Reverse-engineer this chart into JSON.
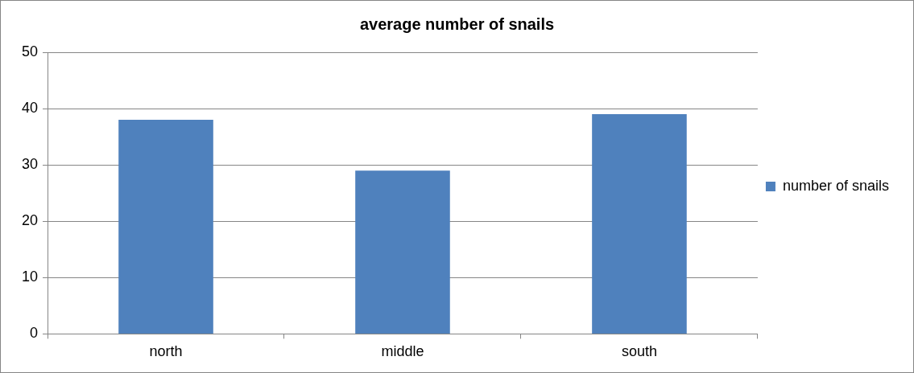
{
  "chart_data": {
    "type": "bar",
    "title": "average number of snails",
    "categories": [
      "north",
      "middle",
      "south"
    ],
    "series": [
      {
        "name": "number of snails",
        "color": "#4f81bd",
        "values": [
          38,
          29,
          39
        ]
      }
    ],
    "ylim": [
      0,
      50
    ],
    "yticks": [
      0,
      10,
      20,
      30,
      40,
      50
    ],
    "grid": "y",
    "legend": "right"
  }
}
